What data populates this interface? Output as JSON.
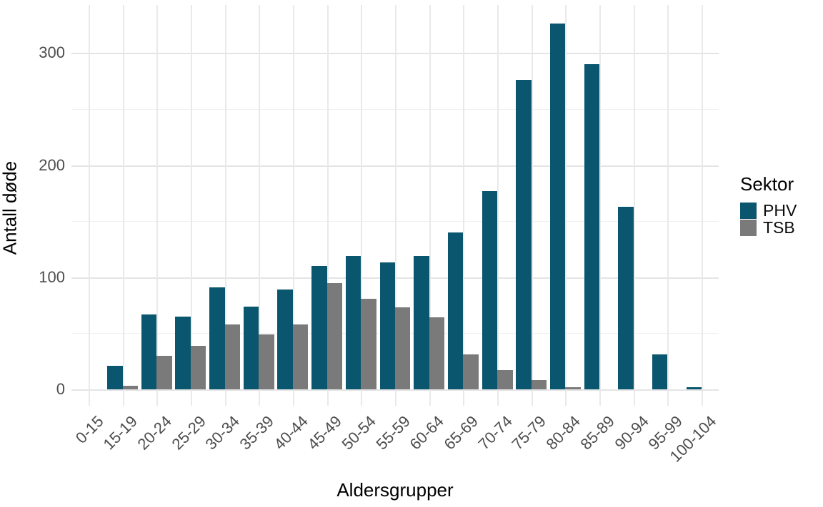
{
  "chart_data": {
    "type": "bar",
    "title": "",
    "xlabel": "Aldersgrupper",
    "ylabel": "Antall døde",
    "categories": [
      "0-15",
      "15-19",
      "20-24",
      "25-29",
      "30-34",
      "35-39",
      "40-44",
      "45-49",
      "50-54",
      "55-59",
      "60-64",
      "65-69",
      "70-74",
      "75-79",
      "80-84",
      "85-89",
      "90-94",
      "95-99",
      "100-104"
    ],
    "series": [
      {
        "name": "PHV",
        "color": "#0a566e",
        "values": [
          0,
          21,
          67,
          65,
          91,
          74,
          89,
          110,
          119,
          113,
          119,
          140,
          177,
          276,
          326,
          290,
          163,
          31,
          2
        ]
      },
      {
        "name": "TSB",
        "color": "#7a7a7a",
        "values": [
          0,
          3,
          30,
          39,
          58,
          49,
          58,
          95,
          81,
          73,
          64,
          31,
          17,
          8,
          2,
          0,
          0,
          0,
          0
        ]
      }
    ],
    "ylim": [
      0,
      343
    ],
    "yticks": [
      0,
      100,
      200,
      300
    ],
    "yticks_minor": [
      50,
      150,
      250
    ],
    "grid": "major and minor horizontal, vertical at each category",
    "legend_position": "right",
    "legend_title": "Sektor"
  },
  "labels": {
    "x_title": "Aldersgrupper",
    "y_title": "Antall døde",
    "legend_title": "Sektor"
  },
  "colors": {
    "background": "#ffffff",
    "grid_major": "#e4e4e4",
    "grid_minor": "#f0f0f0",
    "axis_text": "#4d4d4d",
    "title_text": "#000000"
  }
}
